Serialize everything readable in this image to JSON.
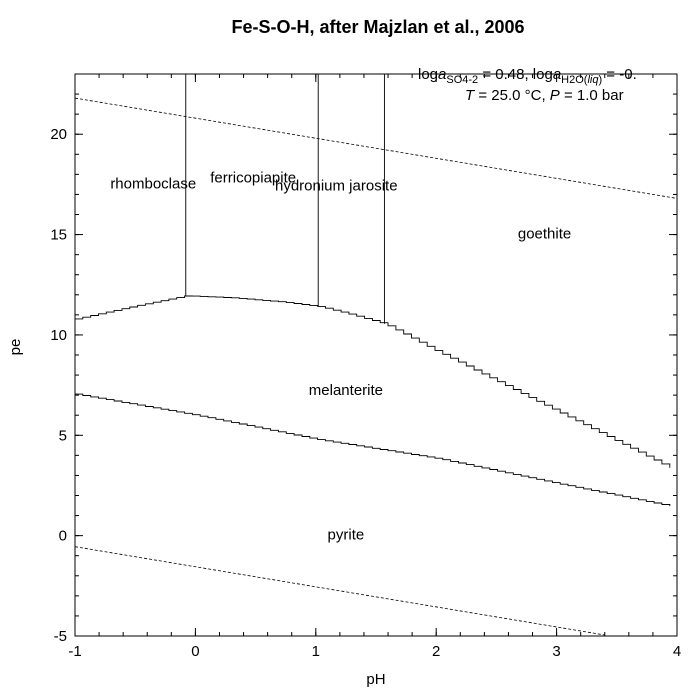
{
  "chart_data": {
    "type": "line",
    "title": "Fe-S-O-H, after Majzlan et al., 2006",
    "xlabel": "pH",
    "ylabel": "pe",
    "xlim": [
      -1,
      4
    ],
    "ylim": [
      -5,
      23
    ],
    "x_ticks": [
      -1,
      0,
      1,
      2,
      3,
      4
    ],
    "x_tick_labels": [
      "-1",
      "0",
      "1",
      "2",
      "3",
      "4"
    ],
    "y_ticks": [
      -5,
      0,
      5,
      10,
      15,
      20
    ],
    "y_tick_labels": [
      "-5",
      "0",
      "5",
      "10",
      "15",
      "20"
    ],
    "grid": false,
    "conditions": {
      "activity_prefix_1": "log",
      "activity_symbol_1": "a",
      "activity_sub_1": "SO4-2",
      "activity_value_1": " = 0.48,",
      "activity_prefix_2": " log",
      "activity_symbol_2": "a",
      "activity_sub_2": "H2O(",
      "activity_sub_2_italic": "liq",
      "activity_sub_2_end": ")",
      "activity_value_2": " = -0.",
      "T_symbol": "T",
      "T_value": " = 25.0 °C, ",
      "P_symbol": "P",
      "P_value": " = 1.0 bar"
    },
    "fields": [
      {
        "name": "rhomboclase",
        "pH": -0.35,
        "pe": 17.3
      },
      {
        "name": "ferricopiapite",
        "pH": 0.48,
        "pe": 17.6
      },
      {
        "name": "hydronium jarosite",
        "pH": 1.17,
        "pe": 17.2
      },
      {
        "name": "goethite",
        "pH": 2.9,
        "pe": 14.8
      },
      {
        "name": "melanterite",
        "pH": 1.25,
        "pe": 7.0
      },
      {
        "name": "pyrite",
        "pH": 1.25,
        "pe": -0.2
      }
    ],
    "water_stability_lines": [
      {
        "x": [
          -1,
          4
        ],
        "y": [
          21.8,
          16.8
        ]
      },
      {
        "x": [
          -1,
          3.4
        ],
        "y": [
          -0.55,
          -4.95
        ]
      }
    ],
    "vertical_boundaries": [
      {
        "pH": -0.08,
        "pe_from": 11.95,
        "pe_to": 23
      },
      {
        "pH": 1.02,
        "pe_from": 11.42,
        "pe_to": 23
      },
      {
        "pH": 1.57,
        "pe_from": 10.55,
        "pe_to": 23
      }
    ],
    "series": [
      {
        "x": [
          -1,
          -0.5,
          -0.08,
          0.3,
          0.7,
          1.02,
          1.3,
          1.57,
          2.0,
          2.5,
          3.0,
          3.5,
          4.0
        ],
        "y": [
          10.8,
          11.45,
          11.95,
          11.85,
          11.65,
          11.42,
          11.0,
          10.55,
          9.2,
          7.7,
          6.2,
          4.7,
          3.2
        ]
      },
      {
        "x": [
          -1,
          0,
          1,
          2,
          3,
          4
        ],
        "y": [
          7.05,
          6.0,
          4.8,
          3.85,
          2.6,
          1.4
        ]
      }
    ]
  }
}
